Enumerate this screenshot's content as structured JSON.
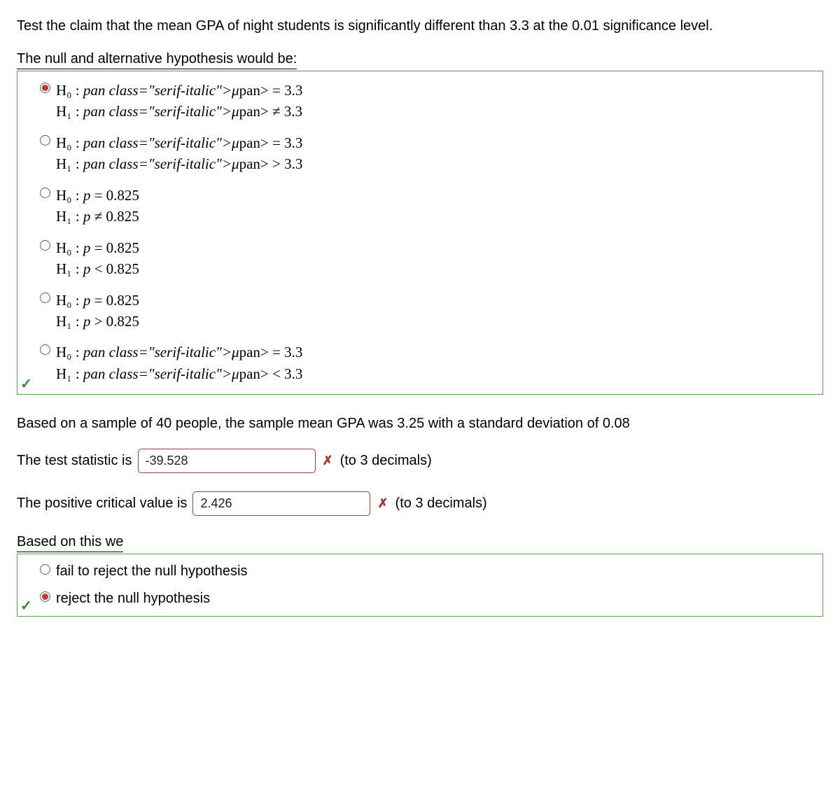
{
  "intro": "Test the claim that the mean GPA of night students is significantly different than 3.3 at the 0.01 significance level.",
  "hyp_prompt": "The null and alternative hypothesis would be:",
  "hypothesis_options": [
    {
      "h0": "H₀ : μ = 3.3",
      "h1": "H₁ : μ ≠ 3.3",
      "selected": true
    },
    {
      "h0": "H₀ : μ = 3.3",
      "h1": "H₁ : μ > 3.3",
      "selected": false
    },
    {
      "h0": "H₀ : p = 0.825",
      "h1": "H₁ : p ≠ 0.825",
      "selected": false
    },
    {
      "h0": "H₀ : p = 0.825",
      "h1": "H₁ : p < 0.825",
      "selected": false
    },
    {
      "h0": "H₀ : p = 0.825",
      "h1": "H₁ : p > 0.825",
      "selected": false
    },
    {
      "h0": "H₀ : μ = 3.3",
      "h1": "H₁ : μ < 3.3",
      "selected": false
    }
  ],
  "hypothesis_correct": true,
  "sample_info": "Based on a sample of 40 people, the sample mean GPA was 3.25 with a standard deviation of 0.08",
  "test_stat": {
    "label_before": "The test statistic is",
    "value": "-39.528",
    "label_after": "(to 3 decimals)",
    "correct": false
  },
  "crit_val": {
    "label_before": "The positive critical value is",
    "value": "2.426",
    "label_after": "(to 3 decimals)",
    "correct": false
  },
  "decision_prompt": "Based on this we",
  "decision_options": [
    {
      "label": "fail to reject the null hypothesis",
      "selected": false
    },
    {
      "label": "reject the null hypothesis",
      "selected": true
    }
  ],
  "decision_correct": true,
  "colors": {
    "correct_border": "#5a9e4f",
    "incorrect_border": "#994040",
    "radio_fill": "#c0392b",
    "check": "#2e8b3d",
    "cross": "#b03030"
  }
}
